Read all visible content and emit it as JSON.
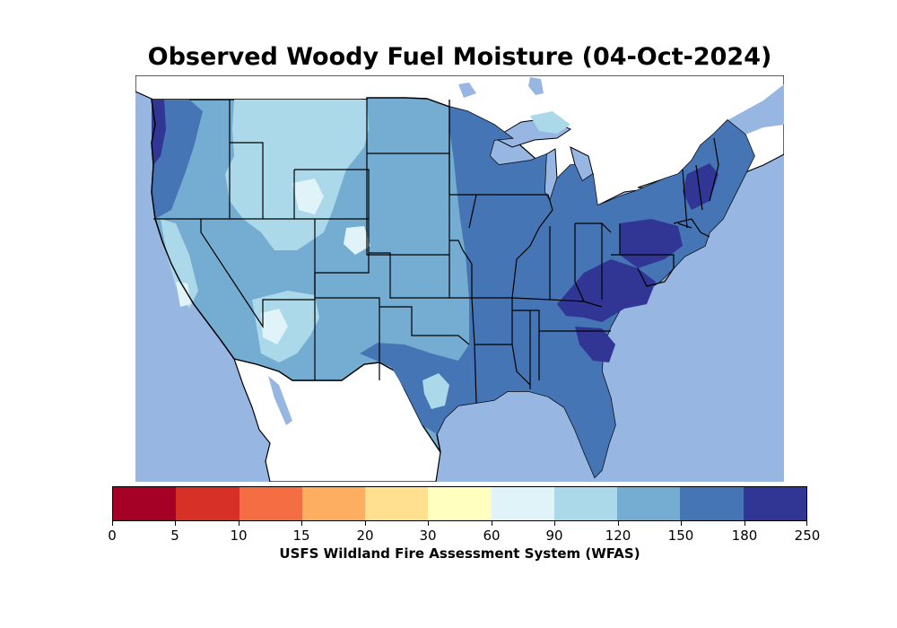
{
  "title": "Observed Woody Fuel Moisture (04-Oct-2024)",
  "colorbar": {
    "label": "USFS Wildland Fire Assessment System (WFAS)",
    "ticks": [
      "0",
      "5",
      "10",
      "15",
      "20",
      "30",
      "60",
      "90",
      "120",
      "150",
      "180",
      "250"
    ],
    "colors": [
      "#a50026",
      "#d73027",
      "#f46d43",
      "#fdae61",
      "#fee090",
      "#ffffbf",
      "#e0f3f8",
      "#abd9e9",
      "#74add1",
      "#4575b4",
      "#313695"
    ]
  },
  "map": {
    "ocean_color": "#97b6e2",
    "land_outside_color": "#ffffff",
    "border_color": "#000000"
  }
}
